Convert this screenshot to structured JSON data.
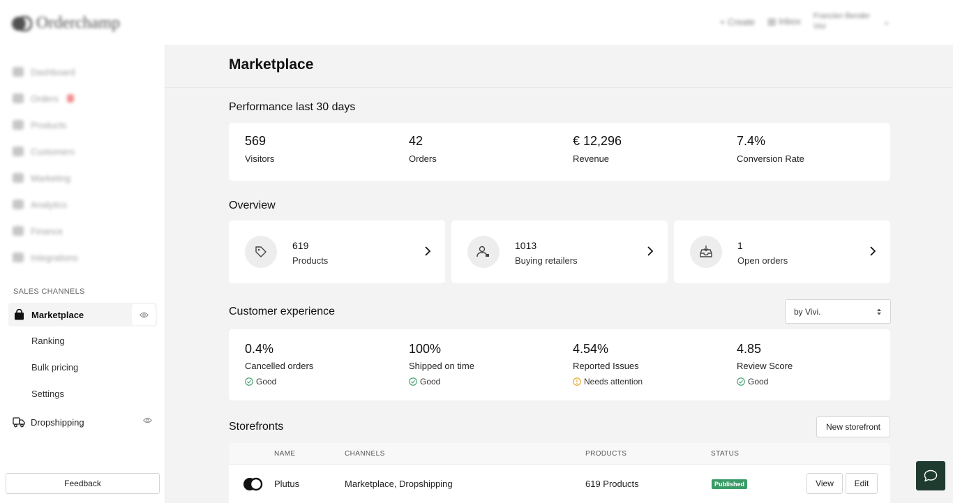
{
  "app": {
    "logo_text": "Orderchamp"
  },
  "topbar": {
    "create_label": "Create",
    "inbox_label": "Inbox",
    "user_name": "Francien Bender",
    "user_sub": "Vivi"
  },
  "sidebar": {
    "nav_items": [
      {
        "label": "Dashboard",
        "icon": "home-icon"
      },
      {
        "label": "Orders",
        "icon": "orders-icon",
        "badge": true
      },
      {
        "label": "Products",
        "icon": "tag-icon"
      },
      {
        "label": "Customers",
        "icon": "customers-icon"
      },
      {
        "label": "Marketing",
        "icon": "megaphone-icon"
      },
      {
        "label": "Analytics",
        "icon": "chart-icon"
      },
      {
        "label": "Finance",
        "icon": "card-icon"
      },
      {
        "label": "Integrations",
        "icon": "link-icon"
      }
    ],
    "section_label": "SALES CHANNELS",
    "marketplace": {
      "label": "Marketplace",
      "sub_items": [
        "Ranking",
        "Bulk pricing",
        "Settings"
      ]
    },
    "dropshipping": {
      "label": "Dropshipping"
    },
    "feedback_label": "Feedback"
  },
  "page": {
    "title": "Marketplace"
  },
  "performance": {
    "title": "Performance last 30 days",
    "stats": [
      {
        "value": "569",
        "label": "Visitors"
      },
      {
        "value": "42",
        "label": "Orders"
      },
      {
        "value": "€ 12,296",
        "label": "Revenue"
      },
      {
        "value": "7.4%",
        "label": "Conversion Rate"
      }
    ]
  },
  "overview": {
    "title": "Overview",
    "cards": [
      {
        "value": "619",
        "label": "Products",
        "icon": "tag-icon"
      },
      {
        "value": "1013",
        "label": "Buying retailers",
        "icon": "retailer-icon"
      },
      {
        "value": "1",
        "label": "Open orders",
        "icon": "inbox-icon"
      }
    ]
  },
  "customer_experience": {
    "title": "Customer experience",
    "select_value": "by Vivi.",
    "stats": [
      {
        "value": "0.4%",
        "label": "Cancelled orders",
        "status": "Good",
        "status_type": "good"
      },
      {
        "value": "100%",
        "label": "Shipped on time",
        "status": "Good",
        "status_type": "good"
      },
      {
        "value": "4.54%",
        "label": "Reported Issues",
        "status": "Needs attention",
        "status_type": "warning"
      },
      {
        "value": "4.85",
        "label": "Review Score",
        "status": "Good",
        "status_type": "good"
      }
    ],
    "colors": {
      "good": "#3a9b67",
      "warning": "#e8a317"
    }
  },
  "storefronts": {
    "title": "Storefronts",
    "new_button": "New storefront",
    "columns": [
      "NAME",
      "CHANNELS",
      "PRODUCTS",
      "STATUS"
    ],
    "rows": [
      {
        "name": "Plutus",
        "channels": "Marketplace, Dropshipping",
        "products": "619 Products",
        "status": "Published",
        "view_label": "View",
        "edit_label": "Edit"
      }
    ]
  }
}
